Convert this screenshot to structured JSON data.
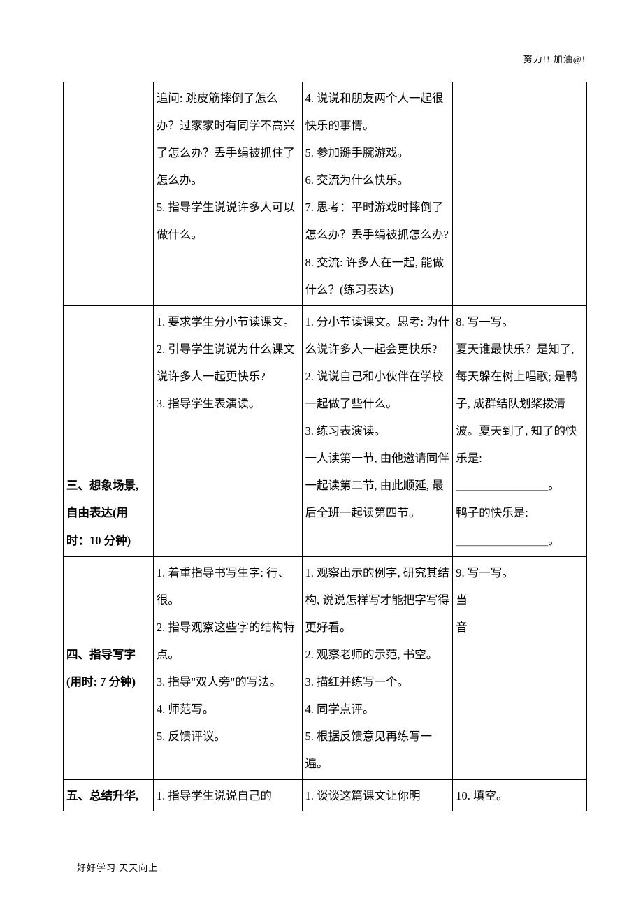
{
  "header_note": "努力!! 加油@!",
  "footer_note": "好好学习  天天向上",
  "table": {
    "border_color": "#000000",
    "background": "#ffffff",
    "font_family": "SimSun",
    "font_size_pt": 12,
    "line_height": 2.37,
    "column_widths_pct": [
      17.2,
      28.4,
      28.8,
      25.6
    ],
    "rows": [
      {
        "top_open": true,
        "cells": [
          {
            "text": "",
            "bold": false
          },
          {
            "text": "追问: 跳皮筋摔倒了怎么办？过家家时有同学不高兴了怎么办？丢手绢被抓住了怎么办。\n5. 指导学生说说许多人可以做什么。"
          },
          {
            "text": "4. 说说和朋友两个人一起很快乐的事情。\n5. 参加掰手腕游戏。\n6. 交流为什么快乐。\n7. 思考：平时游戏时摔倒了怎么办？丢手绢被抓怎么办?\n8. 交流: 许多人在一起, 能做什么？(练习表达)"
          },
          {
            "text": ""
          }
        ]
      },
      {
        "cells": [
          {
            "text": "三、想象场景,\n自由表达(用\n时：10 分钟)",
            "bold": true,
            "valign": "bottom"
          },
          {
            "text": "1. 要求学生分小节读课文。\n2. 引导学生说说为什么课文说许多人一起更快乐?\n3. 指导学生表演读。"
          },
          {
            "text": "1. 分小节读课文。思考: 为什么说许多人一起会更快乐?\n2. 说说自己和小伙伴在学校一起做了些什么。\n3. 练习表演读。\n一人读第一节, 由他邀请同伴一起读第二节, 由此顺延, 最后全班一起读第四节。"
          },
          {
            "text": "8. 写一写。\n夏天谁最快乐？是知了, 每天躲在树上唱歌; 是鸭子, 成群结队划桨拨清波。夏天到了, 知了的快乐是:\n＿＿＿＿＿＿＿＿。\n鸭子的快乐是:\n＿＿＿＿＿＿＿＿。"
          }
        ]
      },
      {
        "cells": [
          {
            "text": "四、指导写字\n(用时: 7 分钟)",
            "bold": true,
            "valign": "middle"
          },
          {
            "text": "1. 着重指导书写生字: 行、很。\n2. 指导观察这些字的结构特点。\n3. 指导\"双人旁\"的写法。\n4. 师范写。\n5. 反馈评议。"
          },
          {
            "text": "1. 观察出示的例字, 研究其结构, 说说怎样写才能把字写得更好看。\n2.  观察老师的示范, 书空。\n3. 描红并练写一个。\n4. 同学点评。\n5. 根据反馈意见再练写一遍。"
          },
          {
            "text": "9. 写一写。\n当\n音"
          }
        ]
      },
      {
        "bottom_open": true,
        "cells": [
          {
            "text": "五、总结升华,",
            "bold": true
          },
          {
            "text": "1. 指导学生说说自己的"
          },
          {
            "text": "1. 谈谈这篇课文让你明"
          },
          {
            "text": "10. 填空。"
          }
        ]
      }
    ]
  }
}
